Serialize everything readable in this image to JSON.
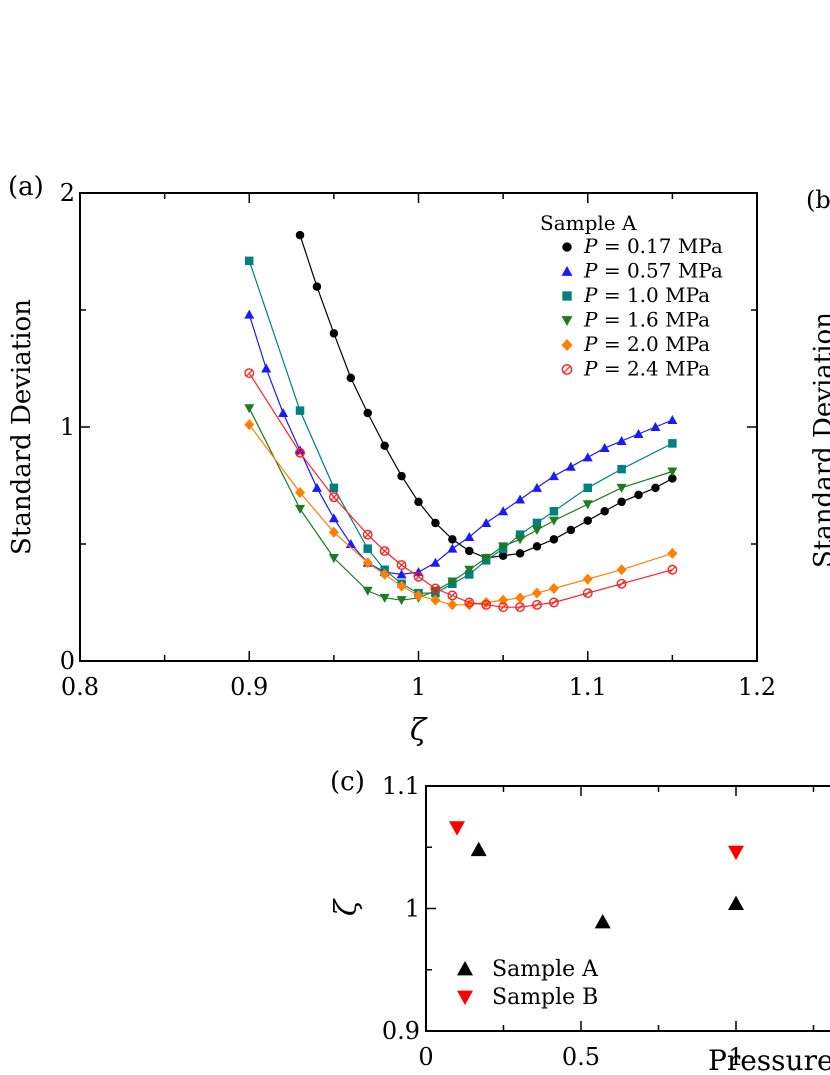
{
  "chart_data": [
    {
      "panel": "(a)",
      "type": "line",
      "xlabel": "ζ",
      "ylabel": "Standard Deviation",
      "xlim": [
        0.8,
        1.2
      ],
      "ylim": [
        0,
        2
      ],
      "xticks": [
        "0.8",
        "0.9",
        "1",
        "1.1",
        "1.2"
      ],
      "yticks": [
        "0",
        "1",
        "2"
      ],
      "legend_title": "Sample A",
      "series": [
        {
          "name": "P = 0.17 MPa",
          "name_italic": "P",
          "name_rest": " = 0.17 MPa",
          "color": "#000000",
          "marker": "circle",
          "x": [
            0.93,
            0.94,
            0.95,
            0.96,
            0.97,
            0.98,
            0.99,
            1.0,
            1.01,
            1.02,
            1.03,
            1.04,
            1.05,
            1.06,
            1.07,
            1.08,
            1.09,
            1.1,
            1.11,
            1.12,
            1.13,
            1.14,
            1.15
          ],
          "values": [
            1.82,
            1.6,
            1.4,
            1.21,
            1.06,
            0.92,
            0.79,
            0.68,
            0.59,
            0.52,
            0.47,
            0.44,
            0.45,
            0.46,
            0.49,
            0.52,
            0.56,
            0.6,
            0.64,
            0.68,
            0.71,
            0.74,
            0.78
          ]
        },
        {
          "name": "P = 0.57 MPa",
          "name_italic": "P",
          "name_rest": " = 0.57 MPa",
          "color": "#1a1aff",
          "marker": "triangle-up",
          "x": [
            0.9,
            0.91,
            0.92,
            0.93,
            0.94,
            0.95,
            0.96,
            0.97,
            0.98,
            0.99,
            1.0,
            1.01,
            1.02,
            1.03,
            1.04,
            1.05,
            1.06,
            1.07,
            1.08,
            1.09,
            1.1,
            1.11,
            1.12,
            1.13,
            1.14,
            1.15
          ],
          "values": [
            1.48,
            1.25,
            1.06,
            0.9,
            0.74,
            0.61,
            0.5,
            0.42,
            0.38,
            0.37,
            0.38,
            0.42,
            0.48,
            0.53,
            0.59,
            0.64,
            0.69,
            0.74,
            0.79,
            0.83,
            0.87,
            0.91,
            0.94,
            0.97,
            1.0,
            1.03
          ]
        },
        {
          "name": "P = 1.0 MPa",
          "name_italic": "P",
          "name_rest": " = 1.0 MPa",
          "color": "#008080",
          "marker": "square",
          "x": [
            0.9,
            0.93,
            0.95,
            0.97,
            0.98,
            0.99,
            1.0,
            1.01,
            1.02,
            1.03,
            1.04,
            1.05,
            1.06,
            1.07,
            1.08,
            1.1,
            1.12,
            1.15
          ],
          "values": [
            1.71,
            1.07,
            0.74,
            0.48,
            0.39,
            0.33,
            0.29,
            0.29,
            0.33,
            0.37,
            0.43,
            0.48,
            0.54,
            0.59,
            0.64,
            0.74,
            0.82,
            0.93
          ]
        },
        {
          "name": "P = 1.6 MPa",
          "name_italic": "P",
          "name_rest": " = 1.6 MPa",
          "color": "#1e7b1e",
          "marker": "triangle-down",
          "x": [
            0.9,
            0.93,
            0.95,
            0.97,
            0.98,
            0.99,
            1.0,
            1.01,
            1.02,
            1.03,
            1.04,
            1.05,
            1.06,
            1.07,
            1.08,
            1.1,
            1.12,
            1.15
          ],
          "values": [
            1.08,
            0.65,
            0.44,
            0.3,
            0.27,
            0.26,
            0.27,
            0.3,
            0.34,
            0.39,
            0.44,
            0.49,
            0.52,
            0.56,
            0.6,
            0.67,
            0.74,
            0.81
          ]
        },
        {
          "name": "P = 2.0 MPa",
          "name_italic": "P",
          "name_rest": " = 2.0 MPa",
          "color": "#ff8000",
          "marker": "diamond",
          "x": [
            0.9,
            0.93,
            0.95,
            0.97,
            0.98,
            0.99,
            1.0,
            1.01,
            1.02,
            1.03,
            1.04,
            1.05,
            1.06,
            1.07,
            1.08,
            1.1,
            1.12,
            1.15
          ],
          "values": [
            1.01,
            0.72,
            0.55,
            0.42,
            0.37,
            0.32,
            0.28,
            0.26,
            0.24,
            0.24,
            0.25,
            0.26,
            0.27,
            0.29,
            0.31,
            0.35,
            0.39,
            0.46
          ]
        },
        {
          "name": "P = 2.4 MPa",
          "name_italic": "P",
          "name_rest": " = 2.4 MPa",
          "color": "#ff2020",
          "marker": "circle-open",
          "x": [
            0.9,
            0.93,
            0.95,
            0.97,
            0.98,
            0.99,
            1.0,
            1.01,
            1.02,
            1.03,
            1.04,
            1.05,
            1.06,
            1.07,
            1.08,
            1.1,
            1.12,
            1.15
          ],
          "values": [
            1.23,
            0.89,
            0.7,
            0.54,
            0.47,
            0.41,
            0.36,
            0.31,
            0.28,
            0.25,
            0.24,
            0.23,
            0.23,
            0.24,
            0.25,
            0.29,
            0.33,
            0.39
          ]
        }
      ]
    },
    {
      "panel": "(c)",
      "type": "scatter",
      "xlabel": "Pressure",
      "ylabel": "ζ",
      "xlim": [
        0,
        1.4
      ],
      "ylim": [
        0.9,
        1.1
      ],
      "xticks": [
        "0",
        "0.5",
        "1"
      ],
      "yticks": [
        "0.9",
        "1",
        "1.1"
      ],
      "series": [
        {
          "name": "Sample A",
          "color": "#000000",
          "marker": "triangle-up",
          "x": [
            0.17,
            0.57,
            1.0
          ],
          "values": [
            1.048,
            0.989,
            1.004
          ]
        },
        {
          "name": "Sample B",
          "color": "#ff0000",
          "marker": "triangle-down",
          "x": [
            0.1,
            1.0
          ],
          "values": [
            1.066,
            1.046
          ]
        }
      ]
    },
    {
      "panel": "(b",
      "type": "line",
      "ylabel": "Standard Deviation"
    }
  ]
}
